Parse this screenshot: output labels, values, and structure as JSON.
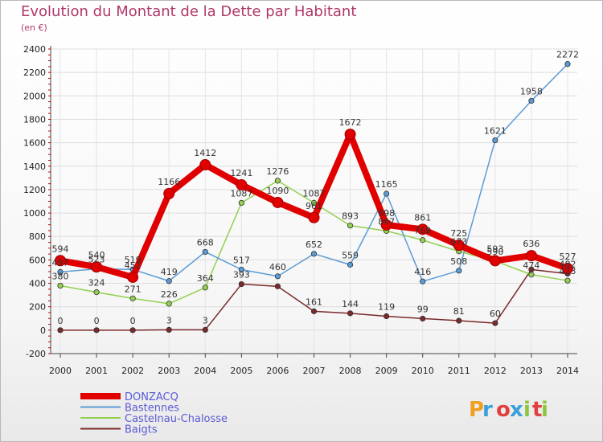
{
  "chart_data": {
    "type": "line",
    "title": "Evolution du Montant de la Dette par Habitant",
    "subtitle": "(en €)",
    "x": [
      2000,
      2001,
      2002,
      2003,
      2004,
      2005,
      2006,
      2007,
      2008,
      2009,
      2010,
      2011,
      2012,
      2013,
      2014
    ],
    "ylim": [
      -200,
      2400
    ],
    "yticks": [
      -200,
      0,
      200,
      400,
      600,
      800,
      1000,
      1200,
      1400,
      1600,
      1800,
      2000,
      2200,
      2400
    ],
    "grid": true,
    "legend": "bottom-left",
    "series": [
      {
        "name": "DONZACQ",
        "color": "#e00000",
        "values": [
          594,
          540,
          452,
          1166,
          1412,
          1241,
          1090,
          961,
          1672,
          898,
          861,
          725,
          593,
          636,
          527
        ],
        "labels": [
          "594",
          "540",
          "452",
          "1166",
          "1412",
          "1241",
          "1090",
          "961",
          "1672",
          "898",
          "861",
          "725",
          "593",
          "636",
          "527"
        ]
      },
      {
        "name": "Bastennes",
        "color": "#5b9bd5",
        "values": [
          497,
          523,
          519,
          419,
          668,
          517,
          460,
          652,
          559,
          1165,
          416,
          508,
          1621,
          1958,
          2272
        ],
        "labels": [
          "497",
          "523",
          "519",
          "419",
          "668",
          "517",
          "460",
          "652",
          "559",
          "1165",
          "416",
          "508",
          "1621",
          "1958",
          "2272"
        ]
      },
      {
        "name": "Castelnau-Chalosse",
        "color": "#92d050",
        "values": [
          380,
          324,
          271,
          226,
          364,
          1087,
          1276,
          1087,
          893,
          847,
          769,
          673,
          590,
          474,
          423
        ],
        "labels": [
          "380",
          "324",
          "271",
          "226",
          "364",
          "1087",
          "1276",
          "1087",
          "893",
          "847",
          "769",
          "673",
          "590",
          "474",
          "423"
        ]
      },
      {
        "name": "Baigts",
        "color": "#7a2a2a",
        "values": [
          0,
          0,
          0,
          3,
          3,
          393,
          374,
          161,
          144,
          119,
          99,
          81,
          60,
          518,
          482
        ],
        "labels": [
          "0",
          "0",
          "0",
          "3",
          "3",
          "393",
          "",
          "161",
          "144",
          "119",
          "99",
          "81",
          "60",
          "",
          "482"
        ]
      }
    ]
  },
  "logo": {
    "text": "Proxiti",
    "colors": [
      "#f0a020",
      "#3aa0dd",
      "#e04040",
      "#8cc63f"
    ]
  }
}
